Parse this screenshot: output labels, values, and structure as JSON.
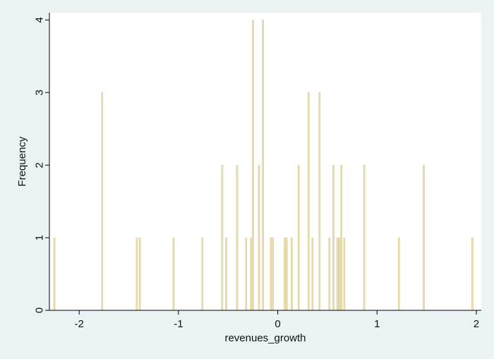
{
  "chart_data": {
    "type": "bar",
    "xlabel": "revenues_growth",
    "ylabel": "Frequency",
    "xlim": [
      -2.3,
      2.05
    ],
    "ylim": [
      0,
      4.1
    ],
    "xticks": [
      -2,
      -1,
      0,
      1,
      2
    ],
    "yticks": [
      0,
      1,
      2,
      3,
      4
    ],
    "xtick_labels": [
      "-2",
      "-1",
      "0",
      "1",
      "2"
    ],
    "ytick_labels": [
      "0",
      "1",
      "2",
      "3",
      "4"
    ],
    "grid": false,
    "legend": "none",
    "colors": {
      "bar": "#e8dcb0",
      "bar_edge": "#d7c889",
      "plot_bg": "#ffffff",
      "outer_bg": "#eaf2f3",
      "axis": "#000000"
    },
    "x": [
      -2.25,
      -1.77,
      -1.42,
      -1.39,
      -1.05,
      -0.76,
      -0.56,
      -0.52,
      -0.41,
      -0.32,
      -0.27,
      -0.25,
      -0.19,
      -0.15,
      -0.07,
      -0.05,
      0.07,
      0.09,
      0.14,
      0.21,
      0.31,
      0.35,
      0.42,
      0.52,
      0.56,
      0.6,
      0.62,
      0.64,
      0.67,
      0.87,
      1.22,
      1.47,
      1.96
    ],
    "values": [
      1,
      3,
      1,
      1,
      1,
      1,
      2,
      1,
      2,
      1,
      1,
      4,
      2,
      4,
      1,
      1,
      1,
      1,
      1,
      2,
      3,
      1,
      3,
      1,
      2,
      1,
      1,
      2,
      1,
      2,
      1,
      2,
      1
    ]
  }
}
